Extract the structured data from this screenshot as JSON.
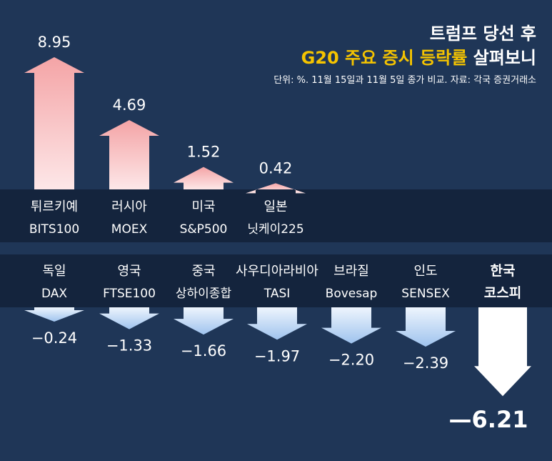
{
  "header": {
    "title_line1": "트럼프 당선 후",
    "title_highlight": "G20 주요 증시 등락률",
    "title_rest": " 살펴보니",
    "note": "단위: %. 11월 15일과 11월 5일 종가 비교. 자료: 각국 증권거래소"
  },
  "colors": {
    "background": "#1f3657",
    "label_band": "#14243d",
    "up_top": "#f4a4a6",
    "up_bottom": "#fde7e8",
    "down_top": "#eef5fd",
    "down_bottom": "#9fc3ee",
    "korea_arrow": "#ffffff",
    "text": "#ffffff",
    "highlight": "#f5c400"
  },
  "chart_data": {
    "type": "bar",
    "unit": "%",
    "series": [
      {
        "line1": "튀르키예",
        "line2": "BITS100",
        "value": 8.95,
        "label": "8.95"
      },
      {
        "line1": "러시아",
        "line2": "MOEX",
        "value": 4.69,
        "label": "4.69"
      },
      {
        "line1": "미국",
        "line2": "S&P500",
        "value": 1.52,
        "label": "1.52"
      },
      {
        "line1": "일본",
        "line2": "닛케이225",
        "value": 0.42,
        "label": "0.42"
      },
      {
        "line1": "독일",
        "line2": "DAX",
        "value": -0.24,
        "label": "−0.24"
      },
      {
        "line1": "영국",
        "line2": "FTSE100",
        "value": -1.33,
        "label": "−1.33"
      },
      {
        "line1": "중국",
        "line2": "상하이종합",
        "value": -1.66,
        "label": "−1.66"
      },
      {
        "line1": "사우디아라비아",
        "line2": "TASI",
        "value": -1.97,
        "label": "−1.97"
      },
      {
        "line1": "브라질",
        "line2": "Bovesap",
        "value": -2.2,
        "label": "−2.20"
      },
      {
        "line1": "인도",
        "line2": "SENSEX",
        "value": -2.39,
        "label": "−2.39"
      },
      {
        "line1": "한국",
        "line2": "코스피",
        "value": -6.21,
        "label": "—6.21",
        "highlight": true
      }
    ]
  }
}
